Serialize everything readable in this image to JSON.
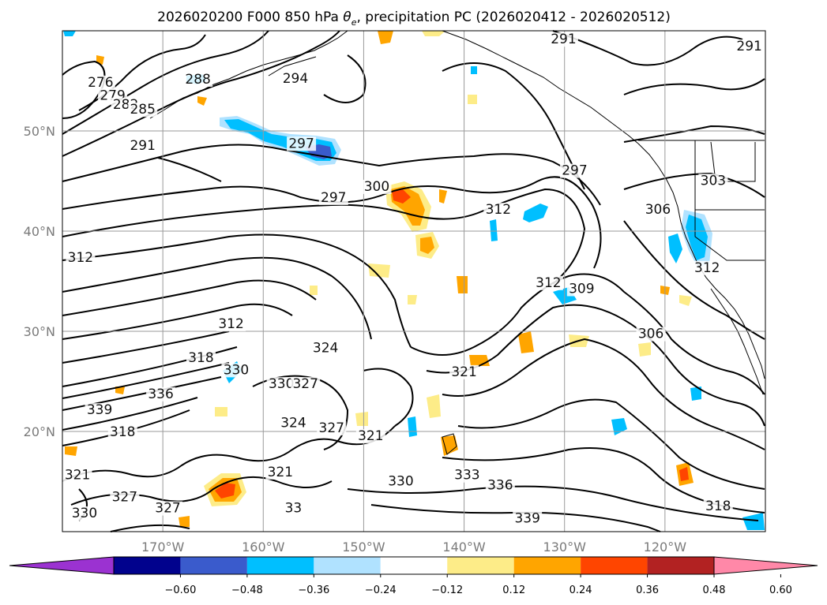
{
  "figure": {
    "title_main": "2026020200 F000 850 hPa ",
    "title_symbol": "θ",
    "title_subscript": "e",
    "title_rest": ", precipitation PC (2026020412 - 2026020512)"
  },
  "map": {
    "lon_range": [
      -180,
      -110
    ],
    "lat_range": [
      10,
      60
    ],
    "lon_ticks": [
      {
        "lon": -170,
        "label": "170°W"
      },
      {
        "lon": -160,
        "label": "160°W"
      },
      {
        "lon": -150,
        "label": "150°W"
      },
      {
        "lon": -140,
        "label": "140°W"
      },
      {
        "lon": -130,
        "label": "130°W"
      },
      {
        "lon": -120,
        "label": "120°W"
      }
    ],
    "lat_ticks": [
      {
        "lat": 20,
        "label": "20°N"
      },
      {
        "lat": 30,
        "label": "30°N"
      },
      {
        "lat": 40,
        "label": "40°N"
      },
      {
        "lat": 50,
        "label": "50°N"
      }
    ],
    "contour_labels": [
      {
        "text": "276",
        "lon": -176.2,
        "lat": 54.5
      },
      {
        "text": "279",
        "lon": -175.0,
        "lat": 53.2
      },
      {
        "text": "282",
        "lon": -173.7,
        "lat": 52.3
      },
      {
        "text": "285",
        "lon": -172.0,
        "lat": 51.8
      },
      {
        "text": "288",
        "lon": -166.5,
        "lat": 54.8
      },
      {
        "text": "294",
        "lon": -156.8,
        "lat": 54.9
      },
      {
        "text": "291",
        "lon": -172.0,
        "lat": 48.2
      },
      {
        "text": "297",
        "lon": -156.2,
        "lat": 48.4
      },
      {
        "text": "297",
        "lon": -153.0,
        "lat": 43.0
      },
      {
        "text": "300",
        "lon": -148.7,
        "lat": 44.1
      },
      {
        "text": "291",
        "lon": -130.1,
        "lat": 58.8
      },
      {
        "text": "291",
        "lon": -111.6,
        "lat": 58.1
      },
      {
        "text": "297",
        "lon": -129.0,
        "lat": 45.7
      },
      {
        "text": "303",
        "lon": -115.2,
        "lat": 44.7
      },
      {
        "text": "306",
        "lon": -120.7,
        "lat": 41.8
      },
      {
        "text": "312",
        "lon": -115.8,
        "lat": 36.0
      },
      {
        "text": "312",
        "lon": -136.6,
        "lat": 41.8
      },
      {
        "text": "309",
        "lon": -128.3,
        "lat": 33.9
      },
      {
        "text": "312",
        "lon": -131.6,
        "lat": 34.5
      },
      {
        "text": "306",
        "lon": -121.4,
        "lat": 29.4
      },
      {
        "text": "312",
        "lon": -178.2,
        "lat": 37.0
      },
      {
        "text": "312",
        "lon": -163.2,
        "lat": 30.4
      },
      {
        "text": "318",
        "lon": -166.2,
        "lat": 27.0
      },
      {
        "text": "330",
        "lon": -162.7,
        "lat": 25.8
      },
      {
        "text": "336",
        "lon": -170.2,
        "lat": 23.4
      },
      {
        "text": "339",
        "lon": -176.3,
        "lat": 21.8
      },
      {
        "text": "324",
        "lon": -153.8,
        "lat": 28.0
      },
      {
        "text": "321",
        "lon": -140.0,
        "lat": 25.6
      },
      {
        "text": "330",
        "lon": -158.2,
        "lat": 24.4
      },
      {
        "text": "327",
        "lon": -155.8,
        "lat": 24.4
      },
      {
        "text": "324",
        "lon": -157.0,
        "lat": 20.5
      },
      {
        "text": "327",
        "lon": -153.2,
        "lat": 20.0
      },
      {
        "text": "321",
        "lon": -149.3,
        "lat": 19.2
      },
      {
        "text": "318",
        "lon": -174.0,
        "lat": 19.6
      },
      {
        "text": "321",
        "lon": -178.5,
        "lat": 15.3
      },
      {
        "text": "327",
        "lon": -173.8,
        "lat": 13.1
      },
      {
        "text": "330",
        "lon": -177.8,
        "lat": 11.5
      },
      {
        "text": "327",
        "lon": -169.5,
        "lat": 12.0
      },
      {
        "text": "321",
        "lon": -158.3,
        "lat": 15.6
      },
      {
        "text": "330",
        "lon": -146.3,
        "lat": 14.7
      },
      {
        "text": "333",
        "lon": -139.7,
        "lat": 15.3
      },
      {
        "text": "336",
        "lon": -136.4,
        "lat": 14.3
      },
      {
        "text": "339",
        "lon": -133.7,
        "lat": 11.0
      },
      {
        "text": "318",
        "lon": -114.7,
        "lat": 12.2
      },
      {
        "text": "33",
        "lon": -157.0,
        "lat": 12.0
      }
    ]
  },
  "colorbar": {
    "levels": [
      -0.6,
      -0.48,
      -0.36,
      -0.24,
      -0.12,
      0.12,
      0.24,
      0.36,
      0.48,
      0.6
    ],
    "colors": [
      "#9b32d1",
      "#01028d",
      "#3a5bcc",
      "#00bfff",
      "#b0e2ff",
      "#ffffff",
      "#fdec88",
      "#ffa500",
      "#ff4500",
      "#b22222",
      "#ff88a8"
    ],
    "tick_labels": [
      "−0.60",
      "−0.48",
      "−0.36",
      "−0.24",
      "−0.12",
      "0.12",
      "0.24",
      "0.36",
      "0.48",
      "0.60"
    ]
  }
}
